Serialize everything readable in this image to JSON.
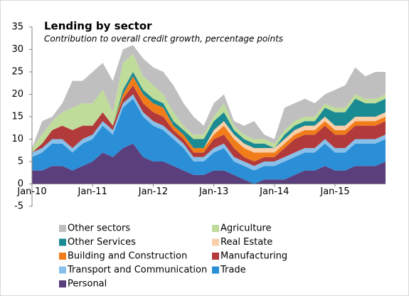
{
  "chart_data": {
    "type": "stacked-area",
    "title": "Lending by sector",
    "subtitle": "Contribution to overall credit growth, percentage points",
    "categories": [
      "Jan-10",
      null,
      null,
      null,
      null,
      null,
      "Jan-11",
      null,
      null,
      null,
      null,
      null,
      "Jan-12",
      null,
      null,
      null,
      null,
      null,
      "Jan-13",
      null,
      null,
      null,
      null,
      null,
      "Jan-14",
      null,
      null,
      null,
      null,
      null,
      "Jan-15",
      null,
      null,
      null,
      null,
      null
    ],
    "ylim": [
      -5,
      35
    ],
    "yticks": [
      -5,
      0,
      5,
      10,
      15,
      20,
      25,
      30,
      35
    ],
    "series": [
      {
        "name": "Personal",
        "color": "#5b3f7d",
        "values": [
          3,
          3,
          4,
          4,
          3,
          4,
          5,
          7,
          6,
          8,
          9,
          6,
          5,
          5,
          4,
          3,
          2,
          2,
          3,
          3,
          2,
          1,
          0,
          1,
          1,
          1,
          2,
          3,
          3,
          4,
          3,
          3,
          4,
          4,
          4,
          5
        ]
      },
      {
        "name": "Trade",
        "color": "#2a8fd6",
        "values": [
          3,
          4,
          5,
          5,
          4,
          5,
          5,
          6,
          5,
          9,
          10,
          9,
          8,
          7,
          6,
          5,
          3,
          3,
          4,
          5,
          3,
          3,
          3,
          3,
          3,
          4,
          4,
          4,
          4,
          5,
          4,
          4,
          5,
          5,
          5,
          5
        ]
      },
      {
        "name": "Transport and Communication",
        "color": "#88c0ea",
        "values": [
          1,
          1,
          1,
          1,
          1,
          1,
          1,
          1,
          1,
          1,
          1,
          1,
          1,
          1,
          1,
          1,
          1,
          1,
          1,
          1,
          1,
          1,
          1,
          1,
          1,
          1,
          1,
          1,
          1,
          1,
          1,
          1,
          1,
          1,
          1,
          1
        ]
      },
      {
        "name": "Manufacturing",
        "color": "#b23a3a",
        "values": [
          0,
          1,
          2,
          3,
          4,
          3,
          2,
          2,
          1,
          1,
          2,
          2,
          2,
          2,
          1,
          1,
          1,
          1,
          2,
          2,
          2,
          1,
          1,
          1,
          1,
          2,
          3,
          3,
          3,
          3,
          3,
          3,
          3,
          3,
          3,
          3
        ]
      },
      {
        "name": "Building and Construction",
        "color": "#f07d1a",
        "values": [
          0,
          0,
          0,
          0,
          0,
          0,
          0,
          0,
          0,
          1,
          2,
          2,
          2,
          2,
          1,
          1,
          1,
          1,
          1,
          2,
          2,
          2,
          2,
          1,
          1,
          1,
          1,
          1,
          1,
          1,
          1,
          1,
          1,
          1,
          1,
          1
        ]
      },
      {
        "name": "Real Estate",
        "color": "#f9cfa9",
        "values": [
          0,
          0,
          0,
          0,
          0,
          0,
          0,
          0,
          0,
          0,
          0,
          0,
          0,
          0,
          0,
          0,
          0,
          0,
          1,
          1,
          1,
          1,
          1,
          1,
          1,
          1,
          1,
          1,
          1,
          1,
          1,
          1,
          1,
          1,
          1,
          1
        ]
      },
      {
        "name": "Other Services",
        "color": "#1a8a93",
        "values": [
          0,
          0,
          0,
          0,
          0,
          0,
          0,
          0,
          0,
          1,
          1,
          1,
          1,
          1,
          1,
          1,
          2,
          2,
          2,
          2,
          1,
          1,
          1,
          1,
          0,
          1,
          1,
          1,
          1,
          2,
          3,
          3,
          4,
          3,
          3,
          3
        ]
      },
      {
        "name": "Agriculture",
        "color": "#bfdc9a",
        "values": [
          1,
          2,
          2,
          3,
          5,
          5,
          5,
          5,
          3,
          6,
          4,
          3,
          3,
          2,
          2,
          1,
          1,
          1,
          1,
          2,
          1,
          1,
          1,
          1,
          1,
          1,
          1,
          1,
          1,
          1,
          1,
          1,
          1,
          1,
          1,
          1
        ]
      },
      {
        "name": "Other sectors",
        "color": "#bfbfbf",
        "values": [
          0,
          3,
          1,
          2,
          6,
          5,
          7,
          6,
          7,
          3,
          2,
          4,
          4,
          5,
          6,
          5,
          4,
          2,
          3,
          2,
          1,
          2,
          4,
          1,
          1,
          5,
          4,
          4,
          3,
          2,
          4,
          5,
          6,
          5,
          6,
          5
        ]
      }
    ]
  }
}
